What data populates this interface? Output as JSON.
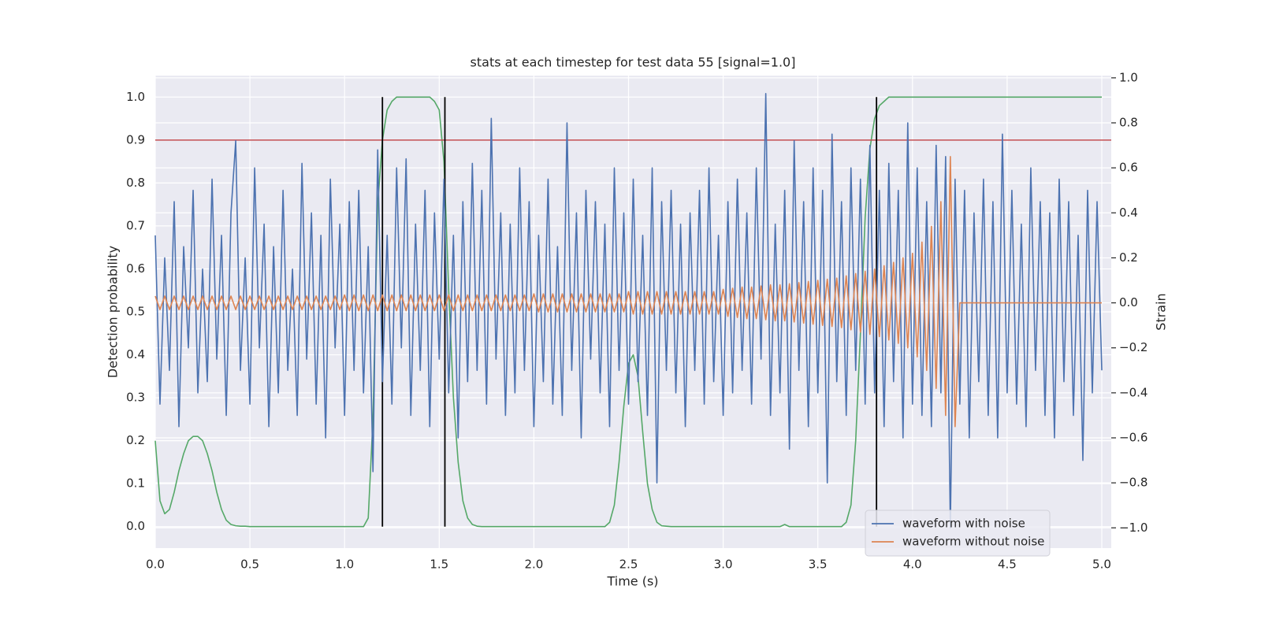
{
  "chart_data": {
    "type": "line",
    "title": "stats at each timestep for test data 55 [signal=1.0]",
    "x_label": "Time (s)",
    "y_label": "Detection probability",
    "y2_label": "Strain",
    "xlim": [
      0,
      5.05
    ],
    "ylim": [
      -0.05,
      1.05
    ],
    "y2lim": [
      -1.09,
      1.01
    ],
    "xticks": [
      {
        "value": 0,
        "label": "0.0"
      },
      0.5,
      {
        "value": 1,
        "label": "1.0"
      },
      1.5,
      {
        "value": 2,
        "label": "2.0"
      },
      2.5,
      {
        "value": 3,
        "label": "3.0"
      },
      3.5,
      {
        "value": 4,
        "label": "4.0"
      },
      4.5,
      {
        "value": 5,
        "label": "5.0"
      }
    ],
    "yticks": [
      {
        "value": 0,
        "label": "0.0"
      },
      0.1,
      0.2,
      0.3,
      0.4,
      0.5,
      0.6,
      0.7,
      0.8,
      0.9,
      {
        "value": 1,
        "label": "1.0"
      }
    ],
    "y2ticks": [
      {
        "value": -1,
        "label": "−1.0"
      },
      {
        "value": -0.8,
        "label": "−0.8"
      },
      {
        "value": -0.6,
        "label": "−0.6"
      },
      {
        "value": -0.4,
        "label": "−0.4"
      },
      {
        "value": -0.2,
        "label": "−0.2"
      },
      {
        "value": 0,
        "label": "0.0"
      },
      0.2,
      0.4,
      0.6,
      0.8,
      {
        "value": 1,
        "label": "1.0"
      }
    ],
    "grid": true,
    "legend": "lower right",
    "hline": 0.9,
    "hline_color": "#c44e52",
    "vlines": [
      1.2,
      1.53,
      3.81
    ],
    "vline_span": [
      0,
      1
    ],
    "vline_color": "#000000",
    "x": [
      0,
      0.025,
      0.05,
      0.075,
      0.1,
      0.125,
      0.15,
      0.175,
      0.2,
      0.225,
      0.25,
      0.275,
      0.3,
      0.325,
      0.35,
      0.375,
      0.4,
      0.425,
      0.45,
      0.475,
      0.5,
      0.525,
      0.55,
      0.575,
      0.6,
      0.625,
      0.65,
      0.675,
      0.7,
      0.725,
      0.75,
      0.775,
      0.8,
      0.825,
      0.85,
      0.875,
      0.9,
      0.925,
      0.95,
      0.975,
      1,
      1.025,
      1.05,
      1.075,
      1.1,
      1.125,
      1.15,
      1.175,
      1.2,
      1.225,
      1.25,
      1.275,
      1.3,
      1.325,
      1.35,
      1.375,
      1.4,
      1.425,
      1.45,
      1.475,
      1.5,
      1.525,
      1.55,
      1.575,
      1.6,
      1.625,
      1.65,
      1.675,
      1.7,
      1.725,
      1.75,
      1.775,
      1.8,
      1.825,
      1.85,
      1.875,
      1.9,
      1.925,
      1.95,
      1.975,
      2,
      2.025,
      2.05,
      2.075,
      2.1,
      2.125,
      2.15,
      2.175,
      2.2,
      2.225,
      2.25,
      2.275,
      2.3,
      2.325,
      2.35,
      2.375,
      2.4,
      2.425,
      2.45,
      2.475,
      2.5,
      2.525,
      2.55,
      2.575,
      2.6,
      2.625,
      2.65,
      2.675,
      2.7,
      2.725,
      2.75,
      2.775,
      2.8,
      2.825,
      2.85,
      2.875,
      2.9,
      2.925,
      2.95,
      2.975,
      3,
      3.025,
      3.05,
      3.075,
      3.1,
      3.125,
      3.15,
      3.175,
      3.2,
      3.225,
      3.25,
      3.275,
      3.3,
      3.325,
      3.35,
      3.375,
      3.4,
      3.425,
      3.45,
      3.475,
      3.5,
      3.525,
      3.55,
      3.575,
      3.6,
      3.625,
      3.65,
      3.675,
      3.7,
      3.725,
      3.75,
      3.775,
      3.8,
      3.825,
      3.85,
      3.875,
      3.9,
      3.925,
      3.95,
      3.975,
      4,
      4.025,
      4.05,
      4.075,
      4.1,
      4.125,
      4.15,
      4.175,
      4.2,
      4.225,
      4.25,
      4.275,
      4.3,
      4.325,
      4.35,
      4.375,
      4.4,
      4.425,
      4.45,
      4.475,
      4.5,
      4.525,
      4.55,
      4.575,
      4.6,
      4.625,
      4.65,
      4.675,
      4.7,
      4.725,
      4.75,
      4.775,
      4.8,
      4.825,
      4.85,
      4.875,
      4.9,
      4.925,
      4.95,
      4.975,
      5
    ],
    "series": [
      {
        "color": "#55a868",
        "axis": "y",
        "values": [
          0.2,
          0.06,
          0.03,
          0.04,
          0.08,
          0.13,
          0.17,
          0.2,
          0.21,
          0.21,
          0.2,
          0.17,
          0.13,
          0.08,
          0.04,
          0.015,
          0.005,
          0.002,
          0.001,
          0.001,
          0,
          0,
          0,
          0,
          0,
          0,
          0,
          0,
          0,
          0,
          0,
          0,
          0,
          0,
          0,
          0,
          0,
          0,
          0,
          0,
          0,
          0,
          0,
          0,
          0,
          0.02,
          0.25,
          0.75,
          0.9,
          0.97,
          0.99,
          1,
          1,
          1,
          1,
          1,
          1,
          1,
          1,
          0.99,
          0.97,
          0.85,
          0.55,
          0.3,
          0.15,
          0.06,
          0.02,
          0.005,
          0.001,
          0,
          0,
          0,
          0,
          0,
          0,
          0,
          0,
          0,
          0,
          0,
          0,
          0,
          0,
          0,
          0,
          0,
          0,
          0,
          0,
          0,
          0,
          0,
          0,
          0,
          0,
          0,
          0.01,
          0.05,
          0.15,
          0.28,
          0.38,
          0.4,
          0.35,
          0.22,
          0.1,
          0.04,
          0.01,
          0.002,
          0.001,
          0,
          0,
          0,
          0,
          0,
          0,
          0,
          0,
          0,
          0,
          0,
          0,
          0,
          0,
          0,
          0,
          0,
          0,
          0,
          0,
          0,
          0,
          0,
          0,
          0.005,
          0,
          0,
          0,
          0,
          0,
          0,
          0,
          0,
          0,
          0,
          0,
          0,
          0.01,
          0.05,
          0.2,
          0.45,
          0.72,
          0.88,
          0.95,
          0.98,
          0.99,
          1,
          1,
          1,
          1,
          1,
          1,
          1,
          1,
          1,
          1,
          1,
          1,
          1,
          1,
          1,
          1,
          1,
          1,
          1,
          1,
          1,
          1,
          1,
          1,
          1,
          1,
          1,
          1,
          1,
          1,
          1,
          1,
          1,
          1,
          1,
          1,
          1,
          1,
          1,
          1,
          1,
          1,
          1,
          1,
          1,
          1
        ]
      },
      {
        "name": "waveform with noise",
        "color": "#4c72b0",
        "axis": "y2",
        "values": [
          0.3,
          -0.45,
          0.2,
          -0.3,
          0.45,
          -0.55,
          0.25,
          -0.2,
          0.5,
          -0.4,
          0.15,
          -0.35,
          0.55,
          -0.25,
          0.3,
          -0.5,
          0.4,
          0.72,
          -0.3,
          0.2,
          -0.45,
          0.6,
          -0.2,
          0.35,
          -0.55,
          0.25,
          -0.4,
          0.5,
          -0.3,
          0.15,
          -0.5,
          0.62,
          -0.25,
          0.4,
          -0.45,
          0.3,
          -0.6,
          0.55,
          -0.2,
          0.35,
          -0.5,
          0.45,
          -0.3,
          0.5,
          -0.4,
          0.25,
          -0.75,
          0.68,
          -0.35,
          0.3,
          -0.45,
          0.6,
          -0.2,
          0.64,
          -0.5,
          0.35,
          -0.3,
          0.5,
          -0.55,
          0.4,
          -0.25,
          0.55,
          -0.4,
          0.3,
          -0.6,
          0.45,
          -0.35,
          0.62,
          -0.3,
          0.5,
          -0.45,
          0.82,
          -0.25,
          0.4,
          -0.5,
          0.35,
          -0.4,
          0.6,
          -0.3,
          0.45,
          -0.55,
          0.3,
          -0.35,
          0.55,
          -0.45,
          0.25,
          -0.5,
          0.8,
          -0.3,
          0.4,
          -0.6,
          0.5,
          -0.25,
          0.45,
          -0.4,
          0.35,
          -0.55,
          0.6,
          -0.3,
          0.4,
          -0.45,
          0.55,
          -0.35,
          0.3,
          -0.5,
          0.6,
          -0.8,
          0.45,
          -0.3,
          0.5,
          -0.4,
          0.35,
          -0.55,
          0.4,
          -0.3,
          0.5,
          -0.45,
          0.6,
          -0.35,
          0.3,
          -0.5,
          0.45,
          -0.4,
          0.55,
          -0.3,
          0.4,
          -0.45,
          0.6,
          -0.25,
          0.93,
          -0.5,
          0.35,
          -0.4,
          0.5,
          -0.65,
          0.72,
          -0.3,
          0.45,
          -0.55,
          0.6,
          -0.4,
          0.5,
          -0.8,
          0.75,
          -0.35,
          0.45,
          -0.5,
          0.6,
          -0.3,
          0.55,
          -0.45,
          0.7,
          -0.4,
          0.5,
          -0.55,
          0.62,
          -0.35,
          0.5,
          -0.6,
          0.8,
          -0.45,
          0.6,
          -0.5,
          0.45,
          -0.55,
          0.7,
          -0.4,
          0.65,
          -1.0,
          0.55,
          -0.45,
          0.5,
          -0.6,
          0.4,
          -0.35,
          0.55,
          -0.5,
          0.45,
          -0.6,
          0.75,
          -0.4,
          0.5,
          -0.45,
          0.35,
          -0.55,
          0.6,
          -0.3,
          0.45,
          -0.5,
          0.4,
          -0.6,
          0.55,
          -0.35,
          0.45,
          -0.5,
          0.3,
          -0.7,
          0.5,
          -0.4,
          0.45,
          -0.3
        ]
      },
      {
        "name": "waveform without noise",
        "color": "#dd8452",
        "axis": "y2",
        "values": [
          0.03,
          -0.03,
          0.03,
          -0.03,
          0.03,
          -0.03,
          0.03,
          -0.03,
          0.03,
          -0.03,
          0.03,
          -0.03,
          0.03,
          -0.03,
          0.03,
          -0.03,
          0.03,
          -0.03,
          0.03,
          -0.03,
          0.03,
          -0.03,
          0.03,
          -0.03,
          0.03,
          -0.03,
          0.03,
          -0.03,
          0.03,
          -0.03,
          0.03,
          -0.03,
          0.03,
          -0.03,
          0.03,
          -0.03,
          0.03,
          -0.03,
          0.03,
          -0.03,
          0.035,
          -0.035,
          0.035,
          -0.035,
          0.035,
          -0.035,
          0.035,
          -0.035,
          0.035,
          -0.035,
          0.035,
          -0.035,
          0.035,
          -0.035,
          0.035,
          -0.035,
          0.035,
          -0.035,
          0.035,
          -0.035,
          0.035,
          -0.035,
          0.035,
          -0.035,
          0.035,
          -0.035,
          0.035,
          -0.035,
          0.035,
          -0.035,
          0.035,
          -0.035,
          0.035,
          -0.035,
          0.035,
          -0.035,
          0.035,
          -0.035,
          0.035,
          -0.035,
          0.04,
          -0.04,
          0.04,
          -0.04,
          0.04,
          -0.04,
          0.04,
          -0.04,
          0.04,
          -0.04,
          0.04,
          -0.04,
          0.04,
          -0.04,
          0.04,
          -0.04,
          0.04,
          -0.04,
          0.04,
          -0.04,
          0.05,
          -0.05,
          0.05,
          -0.05,
          0.05,
          -0.05,
          0.05,
          -0.05,
          0.05,
          -0.05,
          0.05,
          -0.05,
          0.05,
          -0.05,
          0.05,
          -0.05,
          0.05,
          -0.05,
          0.05,
          -0.05,
          0.06,
          -0.06,
          0.065,
          -0.065,
          0.07,
          -0.07,
          0.07,
          -0.07,
          0.075,
          -0.075,
          0.08,
          -0.08,
          0.08,
          -0.08,
          0.085,
          -0.085,
          0.09,
          -0.09,
          0.095,
          -0.095,
          0.1,
          -0.1,
          0.105,
          -0.105,
          0.11,
          -0.11,
          0.12,
          -0.12,
          0.13,
          -0.13,
          0.14,
          -0.14,
          0.15,
          -0.15,
          0.165,
          -0.165,
          0.18,
          -0.18,
          0.2,
          -0.2,
          0.22,
          -0.24,
          0.27,
          -0.3,
          0.34,
          -0.38,
          0.45,
          -0.5,
          0.65,
          -0.55,
          0,
          0,
          0,
          0,
          0,
          0,
          0,
          0,
          0,
          0,
          0,
          0,
          0,
          0,
          0,
          0,
          0,
          0,
          0,
          0,
          0,
          0,
          0,
          0,
          0,
          0,
          0,
          0,
          0,
          0,
          0
        ]
      }
    ]
  }
}
